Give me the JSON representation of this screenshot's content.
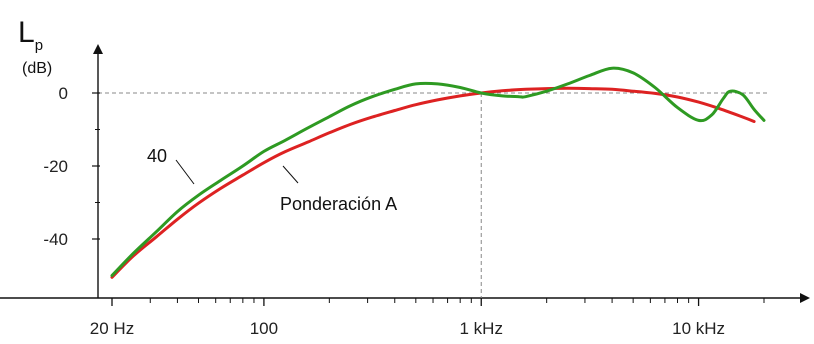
{
  "chart_data": {
    "type": "line",
    "y_axis": {
      "title": "L",
      "subscript": "p",
      "unit": "(dB)",
      "range": [
        -50,
        10
      ]
    },
    "x_axis": {
      "scale": "log",
      "range_hz": [
        20,
        20000
      ]
    },
    "y_ticks": [
      {
        "value": 0,
        "label": "0"
      },
      {
        "value": -20,
        "label": "-20"
      },
      {
        "value": -40,
        "label": "-40"
      }
    ],
    "x_ticks": [
      {
        "hz": 20,
        "label": "20 Hz"
      },
      {
        "hz": 100,
        "label": "100"
      },
      {
        "hz": 1000,
        "label": "1 kHz"
      },
      {
        "hz": 10000,
        "label": "10 kHz"
      }
    ],
    "reference": {
      "hz": 1000,
      "db": 0
    },
    "series": [
      {
        "name": "40",
        "color": "#2e9a22",
        "points": [
          [
            20,
            -50
          ],
          [
            25,
            -44
          ],
          [
            32,
            -38
          ],
          [
            40,
            -32.5
          ],
          [
            50,
            -28
          ],
          [
            63,
            -24
          ],
          [
            80,
            -20
          ],
          [
            100,
            -16
          ],
          [
            125,
            -13
          ],
          [
            160,
            -9.5
          ],
          [
            200,
            -6.5
          ],
          [
            250,
            -3.5
          ],
          [
            315,
            -1
          ],
          [
            400,
            1
          ],
          [
            500,
            2.5
          ],
          [
            630,
            2.5
          ],
          [
            800,
            1.5
          ],
          [
            1000,
            0
          ],
          [
            1250,
            -0.8
          ],
          [
            1500,
            -1
          ],
          [
            1600,
            -1
          ],
          [
            2000,
            0.5
          ],
          [
            2500,
            2.5
          ],
          [
            3150,
            4.8
          ],
          [
            4000,
            6.8
          ],
          [
            5000,
            5.5
          ],
          [
            6300,
            1.5
          ],
          [
            8000,
            -4
          ],
          [
            10000,
            -7.5
          ],
          [
            11500,
            -6
          ],
          [
            13000,
            -1.5
          ],
          [
            14000,
            0.5
          ],
          [
            16000,
            -0.5
          ],
          [
            18000,
            -4.5
          ],
          [
            20000,
            -7.5
          ]
        ]
      },
      {
        "name": "Ponderación A",
        "color": "#dd2222",
        "points": [
          [
            20,
            -50.5
          ],
          [
            25,
            -44.7
          ],
          [
            32,
            -39.4
          ],
          [
            40,
            -34.6
          ],
          [
            50,
            -30.2
          ],
          [
            63,
            -26.2
          ],
          [
            80,
            -22.5
          ],
          [
            100,
            -19.1
          ],
          [
            125,
            -16.1
          ],
          [
            160,
            -13.4
          ],
          [
            200,
            -10.9
          ],
          [
            250,
            -8.6
          ],
          [
            315,
            -6.6
          ],
          [
            400,
            -4.8
          ],
          [
            500,
            -3.2
          ],
          [
            630,
            -1.9
          ],
          [
            800,
            -0.8
          ],
          [
            1000,
            0
          ],
          [
            1250,
            0.6
          ],
          [
            1600,
            1.0
          ],
          [
            2000,
            1.2
          ],
          [
            2500,
            1.3
          ],
          [
            3150,
            1.2
          ],
          [
            4000,
            1.0
          ],
          [
            5000,
            0.5
          ],
          [
            6300,
            -0.1
          ],
          [
            8000,
            -1.1
          ],
          [
            10000,
            -2.5
          ],
          [
            12500,
            -4.3
          ],
          [
            16000,
            -6.6
          ],
          [
            18000,
            -7.8
          ]
        ]
      }
    ],
    "annotations": [
      {
        "text": "40"
      },
      {
        "text": "Ponderación A"
      }
    ]
  }
}
